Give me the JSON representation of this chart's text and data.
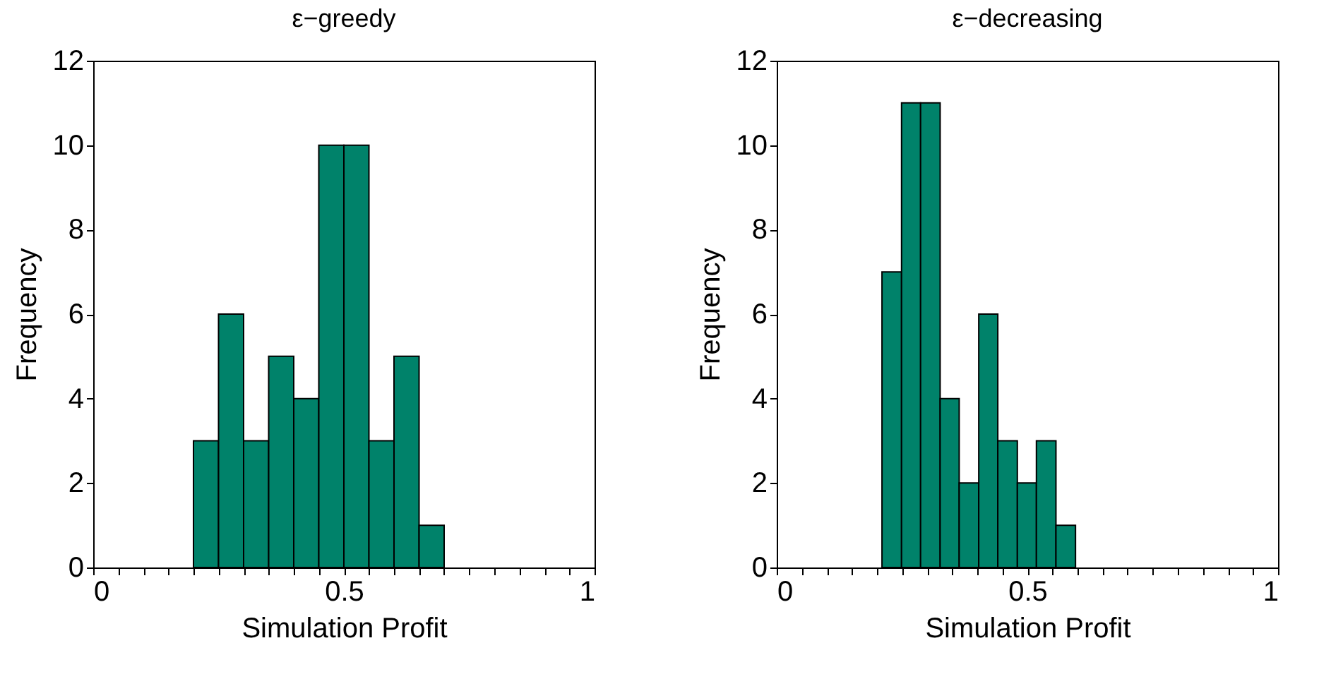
{
  "chart_data": [
    {
      "type": "histogram",
      "title": "ε−greedy",
      "xlabel": "Simulation Profit",
      "ylabel": "Frequency",
      "color": "#00826a",
      "bins": [
        0.2,
        0.25,
        0.3,
        0.35,
        0.4,
        0.45,
        0.5,
        0.55,
        0.6,
        0.65,
        0.7
      ],
      "values": [
        3,
        6,
        3,
        5,
        4,
        10,
        10,
        3,
        5,
        1
      ],
      "xlim": [
        0,
        1
      ],
      "xticks": [
        0,
        {
          "value": 0.05,
          "label": null
        },
        {
          "value": 0.1,
          "label": null
        },
        {
          "value": 0.15,
          "label": null
        },
        {
          "value": 0.2,
          "label": null
        },
        {
          "value": 0.25,
          "label": null
        },
        {
          "value": 0.3,
          "label": null
        },
        {
          "value": 0.35,
          "label": null
        },
        {
          "value": 0.4,
          "label": null
        },
        {
          "value": 0.45,
          "label": null
        },
        0.5,
        {
          "value": 0.55,
          "label": null
        },
        {
          "value": 0.6,
          "label": null
        },
        {
          "value": 0.65,
          "label": null
        },
        {
          "value": 0.7,
          "label": null
        },
        {
          "value": 0.75,
          "label": null
        },
        {
          "value": 0.8,
          "label": null
        },
        {
          "value": 0.85,
          "label": null
        },
        {
          "value": 0.9,
          "label": null
        },
        {
          "value": 0.95,
          "label": null
        },
        1
      ],
      "ylim": [
        0,
        12
      ],
      "yticks": [
        0,
        2,
        4,
        6,
        8,
        10,
        12
      ]
    },
    {
      "type": "histogram",
      "title": "ε−decreasing",
      "xlabel": "Simulation Profit",
      "ylabel": "Frequency",
      "color": "#00826a",
      "bins": [
        0.21,
        0.249,
        0.287,
        0.326,
        0.364,
        0.403,
        0.441,
        0.48,
        0.518,
        0.557,
        0.596
      ],
      "values": [
        7,
        11,
        11,
        4,
        2,
        6,
        3,
        2,
        3,
        1
      ],
      "xlim": [
        0,
        1
      ],
      "xticks": [
        0,
        {
          "value": 0.05,
          "label": null
        },
        {
          "value": 0.1,
          "label": null
        },
        {
          "value": 0.15,
          "label": null
        },
        {
          "value": 0.2,
          "label": null
        },
        {
          "value": 0.25,
          "label": null
        },
        {
          "value": 0.3,
          "label": null
        },
        {
          "value": 0.35,
          "label": null
        },
        {
          "value": 0.4,
          "label": null
        },
        {
          "value": 0.45,
          "label": null
        },
        0.5,
        {
          "value": 0.55,
          "label": null
        },
        {
          "value": 0.6,
          "label": null
        },
        {
          "value": 0.65,
          "label": null
        },
        {
          "value": 0.7,
          "label": null
        },
        {
          "value": 0.75,
          "label": null
        },
        {
          "value": 0.8,
          "label": null
        },
        {
          "value": 0.85,
          "label": null
        },
        {
          "value": 0.9,
          "label": null
        },
        {
          "value": 0.95,
          "label": null
        },
        1
      ],
      "ylim": [
        0,
        12
      ],
      "yticks": [
        0,
        2,
        4,
        6,
        8,
        10,
        12
      ]
    }
  ]
}
